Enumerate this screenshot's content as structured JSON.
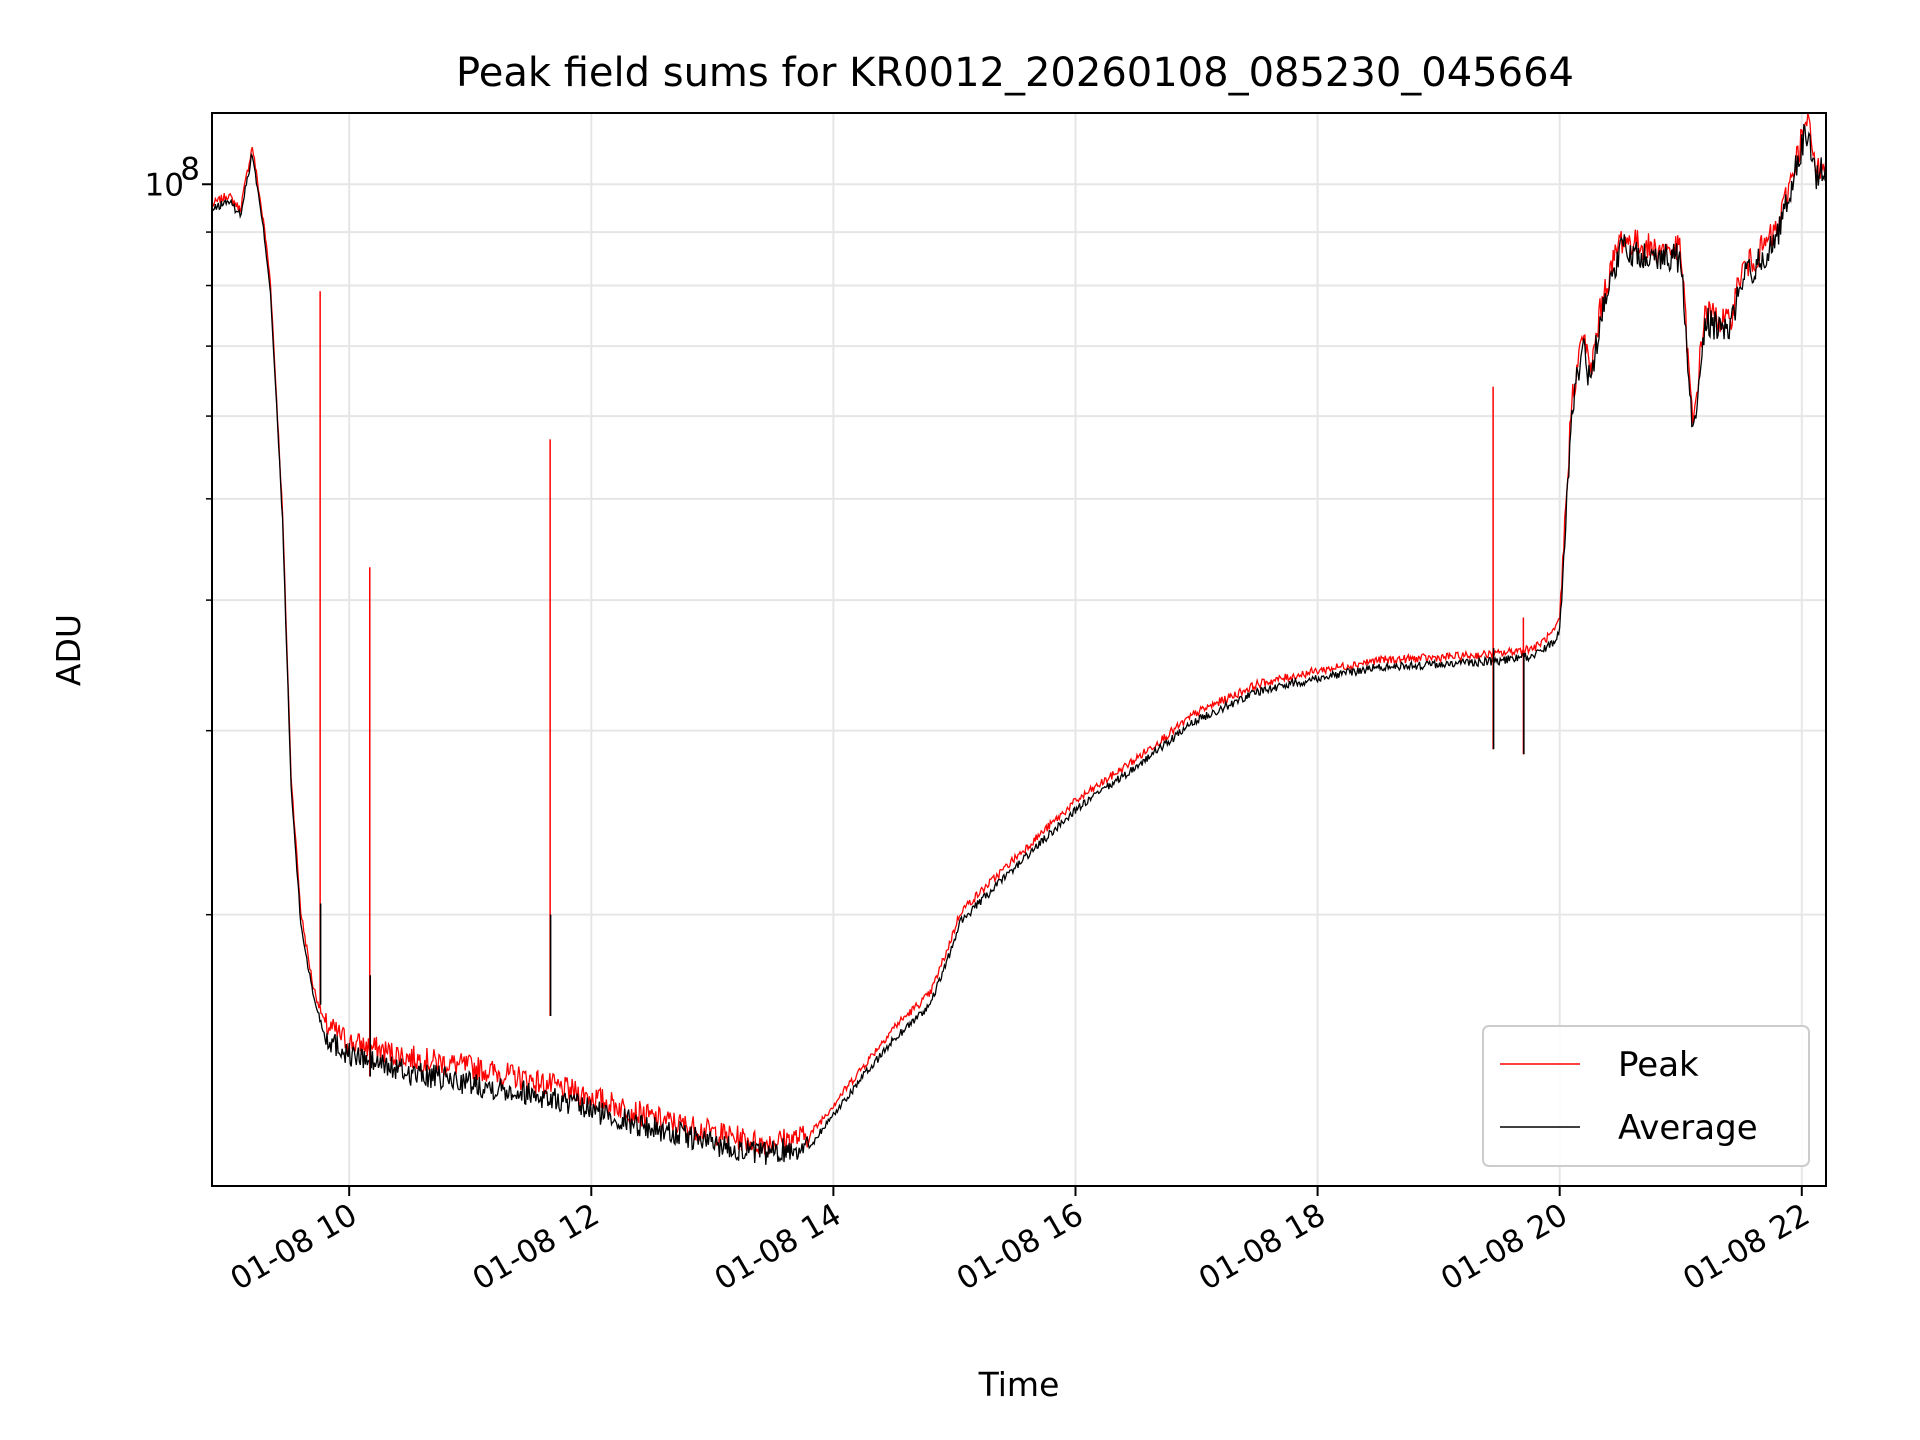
{
  "chart_data": {
    "type": "line",
    "title": "Peak field sums for KR0012_20260108_085230_045664",
    "xlabel": "Time",
    "ylabel": "ADU",
    "yscale": "log",
    "grid": true,
    "legend_position": "lower-right",
    "x_start": "2026-01-08 08:52",
    "x_end": "2026-01-08 22:12",
    "ylim": [
      11000000,
      117000000
    ],
    "x_tick_labels": [
      "01-08 10",
      "01-08 12",
      "01-08 14",
      "01-08 16",
      "01-08 18",
      "01-08 20",
      "01-08 22"
    ],
    "x_tick_hours": [
      10,
      12,
      14,
      16,
      18,
      20,
      22
    ],
    "y_tick_label": {
      "base": "10",
      "exponent": "8"
    },
    "y_tick_value": 100000000,
    "series": [
      {
        "name": "Peak",
        "color": "#ff0000",
        "x_hours": [
          8.87,
          9.0,
          9.1,
          9.2,
          9.3,
          9.35,
          9.45,
          9.52,
          9.6,
          9.7,
          9.8,
          10.0,
          10.5,
          11.0,
          11.5,
          12.0,
          12.5,
          13.0,
          13.4,
          13.8,
          14.2,
          14.5,
          14.8,
          14.95,
          15.05,
          15.5,
          16.0,
          16.5,
          17.0,
          17.5,
          18.0,
          18.5,
          19.0,
          19.5,
          19.8,
          19.95,
          20.0,
          20.1,
          20.2,
          20.25,
          20.35,
          20.5,
          20.8,
          21.0,
          21.1,
          21.2,
          21.4,
          21.5,
          21.6,
          21.8,
          22.0,
          22.05,
          22.12,
          22.2
        ],
        "y": [
          95000000,
          97000000,
          94000000,
          108000000,
          90000000,
          80000000,
          48000000,
          27000000,
          20000000,
          17000000,
          15600000,
          15000000,
          14500000,
          14200000,
          13800000,
          13300000,
          12700000,
          12300000,
          12000000,
          12200000,
          14000000,
          15500000,
          16700000,
          18500000,
          20000000,
          22500000,
          25500000,
          28000000,
          31000000,
          33000000,
          34000000,
          34800000,
          35000000,
          35300000,
          35800000,
          37000000,
          38000000,
          62000000,
          72000000,
          65000000,
          77000000,
          88000000,
          86000000,
          86000000,
          58000000,
          75000000,
          73000000,
          82000000,
          84000000,
          90000000,
          110000000,
          114000000,
          102000000,
          106000000
        ]
      },
      {
        "name": "Average",
        "color": "#000000",
        "x_hours": [
          8.87,
          9.0,
          9.1,
          9.2,
          9.3,
          9.35,
          9.45,
          9.52,
          9.6,
          9.7,
          9.8,
          10.0,
          10.5,
          11.0,
          11.5,
          12.0,
          12.5,
          13.0,
          13.4,
          13.8,
          14.2,
          14.5,
          14.8,
          14.95,
          15.05,
          15.5,
          16.0,
          16.5,
          17.0,
          17.5,
          18.0,
          18.5,
          19.0,
          19.5,
          19.8,
          19.95,
          20.0,
          20.1,
          20.2,
          20.25,
          20.35,
          20.5,
          20.8,
          21.0,
          21.1,
          21.2,
          21.4,
          21.5,
          21.6,
          21.8,
          22.0,
          22.05,
          22.12,
          22.2
        ],
        "y": [
          94500000,
          96500000,
          93500000,
          107000000,
          89000000,
          79000000,
          47500000,
          26500000,
          19600000,
          16800000,
          15300000,
          14700000,
          14100000,
          13800000,
          13500000,
          13000000,
          12500000,
          12100000,
          11800000,
          12000000,
          13800000,
          15200000,
          16400000,
          18200000,
          19700000,
          22200000,
          25200000,
          27700000,
          30700000,
          32700000,
          33700000,
          34500000,
          34700000,
          35000000,
          35400000,
          36500000,
          37500000,
          61000000,
          71000000,
          64000000,
          76000000,
          87000000,
          85000000,
          85000000,
          57000000,
          74000000,
          72000000,
          81000000,
          83000000,
          89000000,
          109000000,
          113000000,
          101000000,
          105000000
        ]
      }
    ],
    "spikes": {
      "series": "Peak",
      "x_hours": [
        9.76,
        10.17,
        11.66,
        19.45,
        19.7
      ],
      "y": [
        79000000,
        43000000,
        57000000,
        64000000,
        38500000
      ],
      "avg_y": [
        20500000,
        17500000,
        20000000,
        36000000,
        35600000
      ]
    }
  }
}
